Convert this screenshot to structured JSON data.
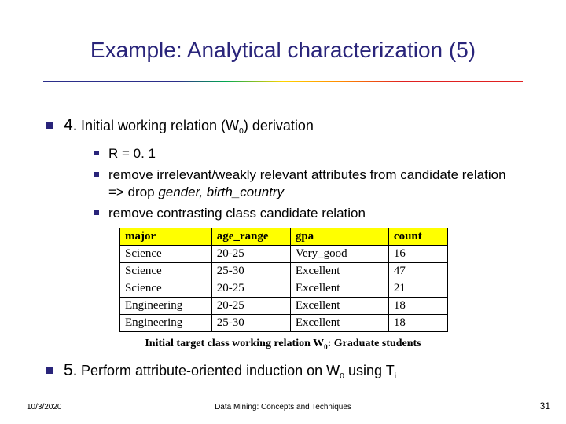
{
  "title": "Example: Analytical characterization (5)",
  "point4": {
    "num": "4.",
    "text_prefix": "Initial working relation (W",
    "text_sub": "0",
    "text_suffix": ") derivation"
  },
  "sub_points": [
    {
      "plain": "R = 0. 1"
    },
    {
      "pre": "remove irrelevant/weakly relevant attributes from candidate relation => drop ",
      "italic": "gender, birth_country"
    },
    {
      "plain": "remove contrasting class candidate relation"
    }
  ],
  "table": {
    "columns": [
      "major",
      "age_range",
      "gpa",
      "count"
    ],
    "rows": [
      [
        "Science",
        "20-25",
        "Very_good",
        "16"
      ],
      [
        "Science",
        "25-30",
        "Excellent",
        "47"
      ],
      [
        "Science",
        "20-25",
        "Excellent",
        "21"
      ],
      [
        "Engineering",
        "20-25",
        "Excellent",
        "18"
      ],
      [
        "Engineering",
        "25-30",
        "Excellent",
        "18"
      ]
    ],
    "header_bg": "#ffff00",
    "border_color": "#000000"
  },
  "caption": {
    "pre": "Initial target class working relation W",
    "sub": "0",
    "post": ": Graduate students"
  },
  "point5": {
    "num": "5.",
    "pre": "Perform attribute-oriented induction on W",
    "sub1": "0",
    "mid": " using T",
    "sub2": "i"
  },
  "footer": {
    "date": "10/3/2020",
    "center": "Data Mining: Concepts and Techniques",
    "page": "31"
  },
  "style": {
    "title_color": "#29247a",
    "marker_color": "#29247a",
    "background": "#ffffff",
    "title_fontsize": 28,
    "body_fontsize": 18
  }
}
